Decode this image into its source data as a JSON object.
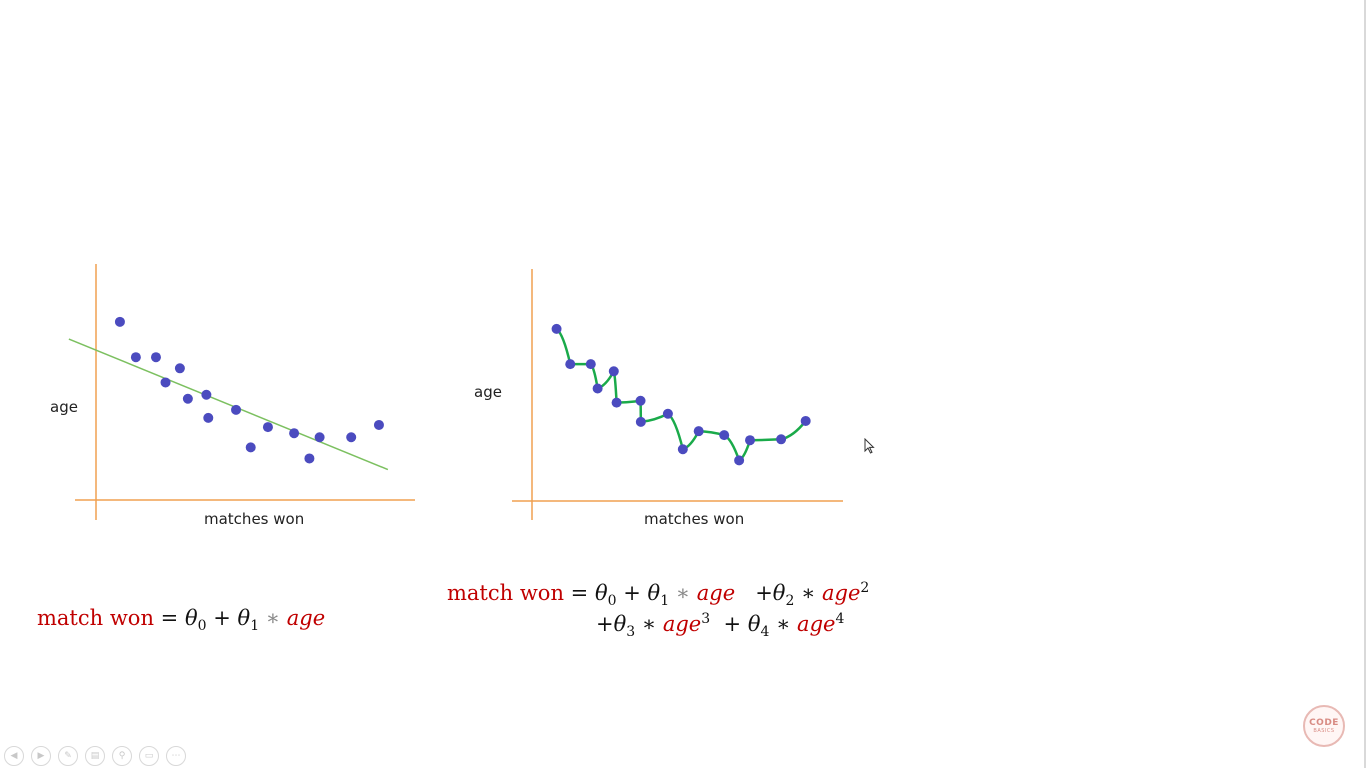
{
  "charts": {
    "left": {
      "ylabel": "age",
      "xlabel": "matches won"
    },
    "right": {
      "ylabel": "age",
      "xlabel": "matches won"
    }
  },
  "colors": {
    "axis": "#f0a050",
    "point": "#4b4bbf",
    "linear_fit": "#7cc060",
    "poly_fit": "#1aaa4a",
    "formula_red": "#c00000"
  },
  "chart_data": [
    {
      "type": "scatter",
      "xlabel": "matches won",
      "ylabel": "age",
      "xlim": [
        0,
        100
      ],
      "ylim": [
        0,
        100
      ],
      "points": [
        [
          7.5,
          75.5
        ],
        [
          12.5,
          60.5
        ],
        [
          18.8,
          60.5
        ],
        [
          21.8,
          49.8
        ],
        [
          26.3,
          55.8
        ],
        [
          28.8,
          42.9
        ],
        [
          34.6,
          44.6
        ],
        [
          35.2,
          34.8
        ],
        [
          43.9,
          38.2
        ],
        [
          48.5,
          22.3
        ],
        [
          53.9,
          30.9
        ],
        [
          62.1,
          28.3
        ],
        [
          66.9,
          17.6
        ],
        [
          70.1,
          26.6
        ],
        [
          80.0,
          26.6
        ],
        [
          88.7,
          31.8
        ]
      ],
      "fit": {
        "kind": "linear",
        "from": [
          -8.5,
          68.2
        ],
        "to": [
          91.5,
          12.9
        ]
      }
    },
    {
      "type": "line",
      "xlabel": "matches won",
      "ylabel": "age",
      "xlim": [
        0,
        100
      ],
      "ylim": [
        0,
        100
      ],
      "points": [
        [
          7.9,
          74.2
        ],
        [
          12.3,
          59.0
        ],
        [
          18.9,
          59.0
        ],
        [
          21.1,
          48.5
        ],
        [
          26.3,
          55.9
        ],
        [
          27.2,
          42.4
        ],
        [
          34.9,
          43.2
        ],
        [
          35.0,
          34.1
        ],
        [
          43.7,
          37.6
        ],
        [
          48.5,
          22.3
        ],
        [
          53.6,
          30.1
        ],
        [
          61.8,
          28.4
        ],
        [
          66.6,
          17.5
        ],
        [
          70.1,
          26.2
        ],
        [
          80.1,
          26.6
        ],
        [
          88.0,
          34.5
        ]
      ],
      "fit": {
        "kind": "polynomial",
        "through_points": true
      }
    }
  ],
  "formulas": {
    "left": {
      "lhs": "match won",
      "eq": "=",
      "t0": "θ",
      "t0_sub": "0",
      "plus": "+",
      "t1": "θ",
      "t1_sub": "1",
      "times": "∗",
      "var": "age"
    },
    "right": {
      "lhs": "match won",
      "eq": "=",
      "t0": "θ",
      "t0_sub": "0",
      "p1": "+",
      "t1": "θ",
      "t1_sub": "1",
      "m1": "∗",
      "v1": "age",
      "p2": "+",
      "t2": "θ",
      "t2_sub": "2",
      "m2": "∗",
      "v2": "age",
      "e2": "2",
      "p3": "+",
      "t3": "θ",
      "t3_sub": "3",
      "m3": "∗",
      "v3": "age",
      "e3": "3",
      "p4": "+",
      "t4": "θ",
      "t4_sub": "4",
      "m4": "∗",
      "v4": "age",
      "e4": "4"
    }
  },
  "logo": {
    "line1": "CODE",
    "line2": "BASICS"
  },
  "toolbar": [
    {
      "icon": "prev-icon",
      "glyph": "◀"
    },
    {
      "icon": "next-icon",
      "glyph": "▶"
    },
    {
      "icon": "pen-icon",
      "glyph": "✎"
    },
    {
      "icon": "slides-icon",
      "glyph": "▤"
    },
    {
      "icon": "zoom-icon",
      "glyph": "⚲"
    },
    {
      "icon": "subtitles-icon",
      "glyph": "▭"
    },
    {
      "icon": "more-icon",
      "glyph": "⋯"
    }
  ]
}
